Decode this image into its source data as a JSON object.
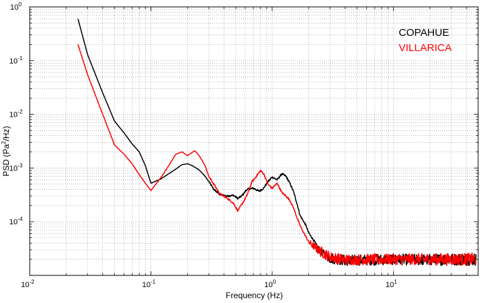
{
  "chart_data": {
    "type": "line",
    "title": "",
    "xlabel": "Frequency (Hz)",
    "ylabel_parts": [
      "PSD (Pa",
      "2",
      "/Hz)"
    ],
    "xscale": "log",
    "yscale": "log",
    "xlim": [
      0.01,
      50
    ],
    "ylim": [
      1e-05,
      1
    ],
    "grid": true,
    "legend_position": "top-right",
    "x_ticks": [
      {
        "value": 0.01,
        "base": "10",
        "exp": "-2"
      },
      {
        "value": 0.1,
        "base": "10",
        "exp": "-1"
      },
      {
        "value": 1,
        "base": "10",
        "exp": "0"
      },
      {
        "value": 10,
        "base": "10",
        "exp": "1"
      }
    ],
    "y_ticks": [
      {
        "value": 1,
        "base": "10",
        "exp": "0"
      },
      {
        "value": 0.1,
        "base": "10",
        "exp": "-1"
      },
      {
        "value": 0.01,
        "base": "10",
        "exp": "-2"
      },
      {
        "value": 0.001,
        "base": "10",
        "exp": "-3"
      },
      {
        "value": 0.0001,
        "base": "10",
        "exp": "-4"
      }
    ],
    "series": [
      {
        "name": "COPAHUE",
        "color": "#000000",
        "noise_level": [
          [
            2.4,
            0.05
          ],
          [
            3.0,
            0.1
          ],
          [
            50,
            0.12
          ]
        ],
        "points": [
          [
            0.025,
            0.6
          ],
          [
            0.03,
            0.13
          ],
          [
            0.04,
            0.025
          ],
          [
            0.05,
            0.0075
          ],
          [
            0.06,
            0.0045
          ],
          [
            0.07,
            0.0028
          ],
          [
            0.08,
            0.002
          ],
          [
            0.09,
            0.0011
          ],
          [
            0.1,
            0.00052
          ],
          [
            0.12,
            0.00062
          ],
          [
            0.14,
            0.00078
          ],
          [
            0.16,
            0.00095
          ],
          [
            0.18,
            0.00115
          ],
          [
            0.2,
            0.0012
          ],
          [
            0.22,
            0.0011
          ],
          [
            0.25,
            0.00092
          ],
          [
            0.28,
            0.0007
          ],
          [
            0.3,
            0.00056
          ],
          [
            0.33,
            0.0004
          ],
          [
            0.37,
            0.00032
          ],
          [
            0.42,
            0.0003
          ],
          [
            0.48,
            0.00031
          ],
          [
            0.52,
            0.00027
          ],
          [
            0.56,
            0.0003
          ],
          [
            0.62,
            0.0004
          ],
          [
            0.7,
            0.00042
          ],
          [
            0.78,
            0.00037
          ],
          [
            0.85,
            0.00042
          ],
          [
            0.92,
            0.00055
          ],
          [
            1.0,
            0.00068
          ],
          [
            1.1,
            0.0006
          ],
          [
            1.2,
            0.00078
          ],
          [
            1.3,
            0.0007
          ],
          [
            1.4,
            0.00052
          ],
          [
            1.5,
            0.00036
          ],
          [
            1.6,
            0.00022
          ],
          [
            1.7,
            0.00013
          ],
          [
            1.8,
            0.000105
          ],
          [
            1.9,
            8.5e-05
          ],
          [
            2.0,
            6.2e-05
          ],
          [
            2.2,
            4.5e-05
          ],
          [
            2.5,
            2.8e-05
          ],
          [
            3.0,
            2.1e-05
          ],
          [
            4.0,
            1.9e-05
          ],
          [
            6.0,
            1.95e-05
          ],
          [
            10.0,
            1.98e-05
          ],
          [
            20.0,
            1.95e-05
          ],
          [
            35.0,
            2e-05
          ],
          [
            48.0,
            2e-05
          ]
        ]
      },
      {
        "name": "VILLARICA",
        "color": "#ff0000",
        "noise_level": [
          [
            2.0,
            0.05
          ],
          [
            2.5,
            0.1
          ],
          [
            50,
            0.12
          ]
        ],
        "points": [
          [
            0.025,
            0.2
          ],
          [
            0.03,
            0.055
          ],
          [
            0.04,
            0.01
          ],
          [
            0.05,
            0.0027
          ],
          [
            0.06,
            0.0018
          ],
          [
            0.07,
            0.0012
          ],
          [
            0.08,
            0.00075
          ],
          [
            0.09,
            0.00052
          ],
          [
            0.1,
            0.00038
          ],
          [
            0.12,
            0.00065
          ],
          [
            0.14,
            0.0011
          ],
          [
            0.16,
            0.0018
          ],
          [
            0.18,
            0.002
          ],
          [
            0.2,
            0.0017
          ],
          [
            0.23,
            0.0021
          ],
          [
            0.25,
            0.0017
          ],
          [
            0.28,
            0.0011
          ],
          [
            0.3,
            0.0007
          ],
          [
            0.33,
            0.0005
          ],
          [
            0.37,
            0.00033
          ],
          [
            0.42,
            0.00028
          ],
          [
            0.48,
            0.00022
          ],
          [
            0.52,
            0.00016
          ],
          [
            0.57,
            0.00022
          ],
          [
            0.62,
            0.00031
          ],
          [
            0.68,
            0.00055
          ],
          [
            0.74,
            0.0007
          ],
          [
            0.8,
            0.0009
          ],
          [
            0.86,
            0.00075
          ],
          [
            0.92,
            0.0005
          ],
          [
            1.0,
            0.00042
          ],
          [
            1.1,
            0.00052
          ],
          [
            1.2,
            0.00035
          ],
          [
            1.3,
            0.0003
          ],
          [
            1.4,
            0.00025
          ],
          [
            1.5,
            0.00018
          ],
          [
            1.6,
            0.00012
          ],
          [
            1.7,
            8.5e-05
          ],
          [
            1.8,
            6.5e-05
          ],
          [
            1.9,
            5.2e-05
          ],
          [
            2.0,
            4.2e-05
          ],
          [
            2.2,
            3.5e-05
          ],
          [
            2.5,
            2.8e-05
          ],
          [
            3.0,
            2.2e-05
          ],
          [
            4.0,
            1.95e-05
          ],
          [
            6.0,
            1.98e-05
          ],
          [
            10.0,
            2e-05
          ],
          [
            20.0,
            2e-05
          ],
          [
            35.0,
            2e-05
          ],
          [
            48.0,
            2e-05
          ]
        ]
      }
    ]
  }
}
